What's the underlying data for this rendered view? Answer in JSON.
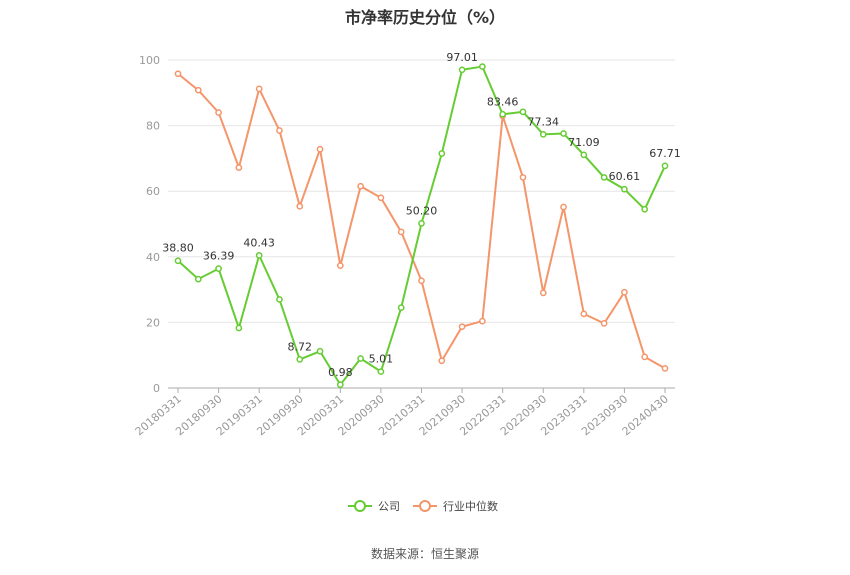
{
  "chart_data": {
    "type": "line",
    "title": "市净率历史分位（%）",
    "source": "数据来源：恒生聚源",
    "ylim": [
      0,
      100
    ],
    "y_ticks": [
      0,
      20,
      40,
      60,
      80,
      100
    ],
    "x_tick_labels": [
      "20180331",
      "20180930",
      "20190331",
      "20190930",
      "20200331",
      "20200930",
      "20210331",
      "20210930",
      "20220331",
      "20220930",
      "20230331",
      "20230930",
      "20240430"
    ],
    "grid": "horizontal",
    "legend_position": "bottom",
    "series": [
      {
        "name": "公司",
        "color": "#66cc33",
        "values": [
          38.8,
          33.2,
          36.39,
          18.3,
          40.43,
          27.0,
          8.72,
          11.2,
          0.98,
          9.0,
          5.01,
          24.5,
          50.2,
          71.5,
          97.01,
          98.0,
          83.46,
          84.2,
          77.34,
          77.6,
          71.09,
          64.2,
          60.61,
          54.5,
          67.71
        ],
        "labels": [
          "38.80",
          null,
          "36.39",
          null,
          "40.43",
          null,
          "8.72",
          null,
          "0.98",
          null,
          "5.01",
          null,
          "50.20",
          null,
          "97.01",
          null,
          "83.46",
          null,
          "77.34",
          null,
          "71.09",
          null,
          "60.61",
          null,
          "67.71"
        ]
      },
      {
        "name": "行业中位数",
        "color": "#f4956a",
        "values": [
          95.8,
          90.8,
          84.0,
          67.2,
          91.2,
          78.5,
          55.4,
          72.8,
          37.3,
          61.5,
          58.0,
          47.6,
          32.7,
          8.3,
          18.7,
          20.4,
          83.0,
          64.2,
          29.0,
          55.2,
          22.6,
          19.7,
          29.2,
          9.5,
          6.0
        ]
      }
    ]
  }
}
